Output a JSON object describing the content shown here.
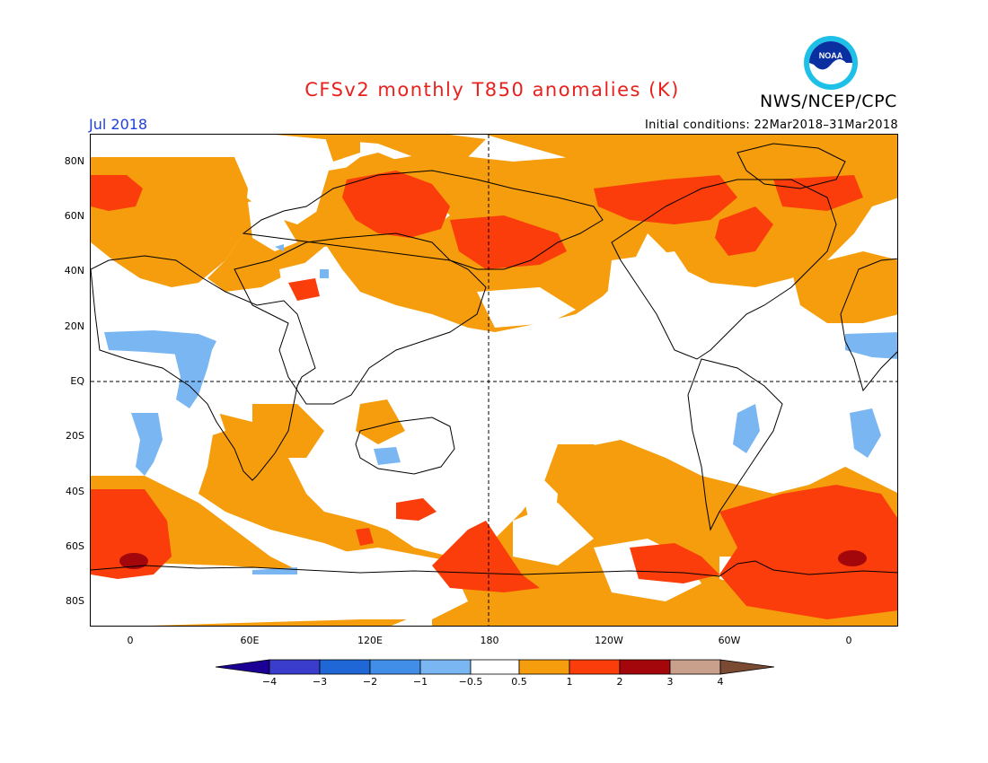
{
  "title": "CFSv2 monthly T850 anomalies (K)",
  "agency": "NWS/NCEP/CPC",
  "logo_text": "NOAA",
  "valid_month": "Jul 2018",
  "initial_conditions": "Initial conditions: 22Mar2018–31Mar2018",
  "lat_labels": [
    "80N",
    "60N",
    "40N",
    "20N",
    "EQ",
    "20S",
    "40S",
    "60S",
    "80S"
  ],
  "lon_labels": [
    "0",
    "60E",
    "120E",
    "180",
    "120W",
    "60W",
    "0"
  ],
  "colorbar": {
    "labels": [
      "−4",
      "−3",
      "−2",
      "−1",
      "−0.5",
      "0.5",
      "1",
      "2",
      "3",
      "4"
    ],
    "colors": [
      "#1c0096",
      "#3a3ccc",
      "#1f66d6",
      "#418ee8",
      "#7ab7f2",
      "#ffffff",
      "#f59d0c",
      "#fa3d0a",
      "#a3070b",
      "#c8a08c",
      "#7a4a32"
    ]
  },
  "palette": {
    "warm1": "#f59d0c",
    "warm2": "#fa3d0a",
    "warm3": "#a3070b",
    "cool1": "#7ab7f2",
    "title_red": "#e8211d",
    "month_blue": "#2040e0"
  }
}
